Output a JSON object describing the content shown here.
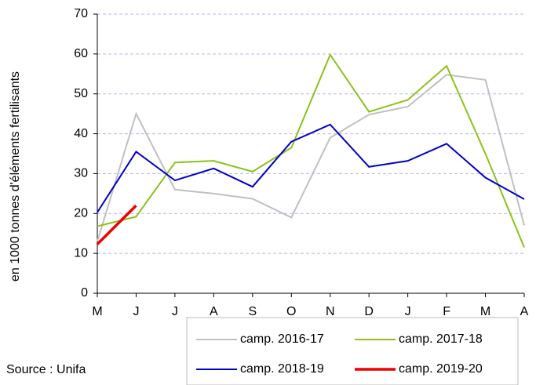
{
  "chart_data": {
    "type": "line",
    "y_label": "en 1000 tonnes d'éléments fertilisants",
    "source": "Source : Unifa",
    "categories": [
      "M",
      "J",
      "J",
      "A",
      "S",
      "O",
      "N",
      "D",
      "J",
      "F",
      "M",
      "A"
    ],
    "series": [
      {
        "name": "camp. 2016-17",
        "color": "#c0c0c0",
        "values": [
          13,
          45,
          26,
          25,
          23.7,
          19,
          39,
          44.8,
          46.8,
          54.8,
          53.5,
          17
        ]
      },
      {
        "name": "camp. 2017-18",
        "color": "#8cc21a",
        "values": [
          16.8,
          19.2,
          32.8,
          33.2,
          30.5,
          36.5,
          59.8,
          45.5,
          48.5,
          57,
          35,
          11.5
        ]
      },
      {
        "name": "camp. 2018-19",
        "color": "#0000cc",
        "values": [
          20.3,
          35.5,
          28.3,
          31.3,
          26.7,
          38,
          42.3,
          31.7,
          33.2,
          37.5,
          29,
          23.6
        ]
      },
      {
        "name": "camp. 2019-20",
        "color": "#ee0000",
        "values": [
          12.3,
          22,
          null,
          null,
          null,
          null,
          null,
          null,
          null,
          null,
          null,
          null
        ]
      }
    ],
    "ylim": [
      0,
      70
    ],
    "yticks": [
      0,
      10,
      20,
      30,
      40,
      50,
      60,
      70
    ],
    "grid": true
  }
}
